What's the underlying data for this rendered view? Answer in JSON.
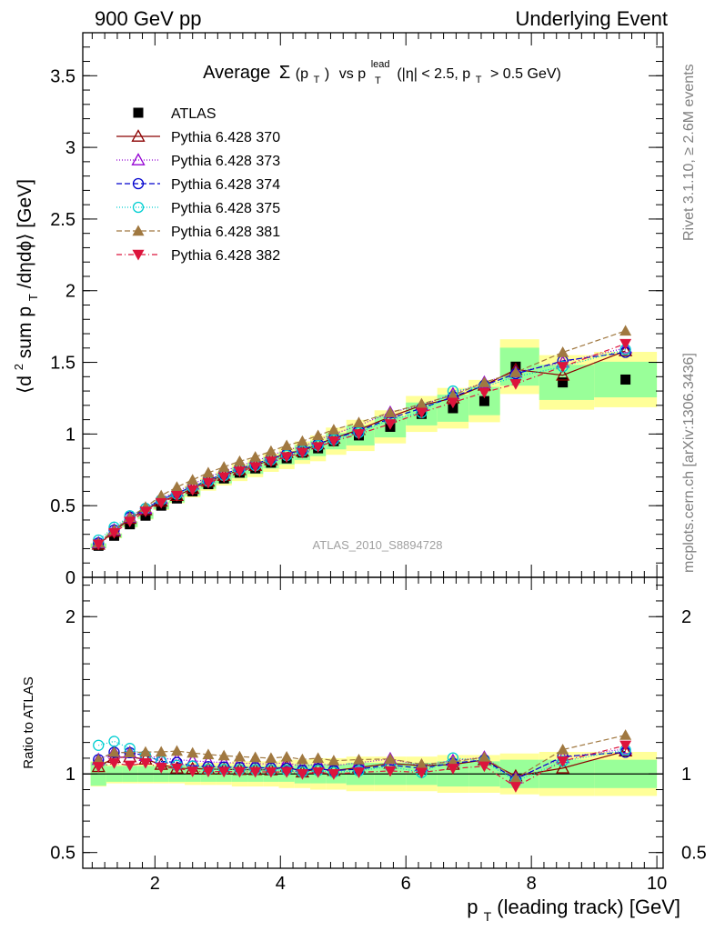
{
  "header": {
    "left": "900 GeV pp",
    "right": "Underlying Event"
  },
  "side": {
    "rivet": "Rivet 3.1.10, ≥ 2.6M events",
    "mcplots": "mcplots.cern.ch [arXiv:1306.3436]"
  },
  "watermark": "ATLAS_2010_S8894728",
  "chart_data": [
    {
      "type": "scatter",
      "title_parts": {
        "prefix": "Average",
        "sigma": "Σ",
        "sigma_arg": "(p",
        "sigma_sub": "T",
        "sigma_close": ")",
        "vs": "vs p",
        "lead_sup": "lead",
        "lead_sub": "T",
        "cut1": "(|η| < 2.5, p",
        "cut_sub": "T",
        "cut2": "> 0.5 GeV)"
      },
      "ylabel_parts": {
        "a": "⟨d",
        "sup": "2",
        "b": " sum p",
        "sub": "T",
        "c": "/dηdϕ⟩ [GeV]"
      },
      "xlim": [
        0.85,
        10.1
      ],
      "ylim": [
        0,
        3.8
      ],
      "yticks": [
        0,
        0.5,
        1,
        1.5,
        2,
        2.5,
        3,
        3.5
      ],
      "ytick_labels": [
        "0",
        "0.5",
        "1",
        "1.5",
        "2",
        "2.5",
        "3",
        "3.5"
      ],
      "x": [
        1.1,
        1.35,
        1.6,
        1.85,
        2.1,
        2.35,
        2.6,
        2.85,
        3.1,
        3.35,
        3.6,
        3.85,
        4.1,
        4.35,
        4.6,
        4.85,
        5.25,
        5.75,
        6.25,
        6.75,
        7.25,
        7.75,
        8.5,
        9.5
      ],
      "series": [
        {
          "name": "ATLAS",
          "marker": "square-filled",
          "color": "#000000",
          "line": "none",
          "values": [
            0.22,
            0.29,
            0.37,
            0.43,
            0.5,
            0.55,
            0.6,
            0.65,
            0.69,
            0.73,
            0.76,
            0.8,
            0.83,
            0.87,
            0.9,
            0.95,
            0.99,
            1.05,
            1.14,
            1.18,
            1.23,
            1.47,
            1.36,
            1.38
          ],
          "band_inner": [
            0.075,
            0.05,
            0.05,
            0.05,
            0.05,
            0.05,
            0.05,
            0.05,
            0.05,
            0.05,
            0.05,
            0.05,
            0.05,
            0.06,
            0.06,
            0.06,
            0.07,
            0.07,
            0.07,
            0.08,
            0.08,
            0.09,
            0.09,
            0.09
          ],
          "band_outer": [
            0.08,
            0.06,
            0.06,
            0.06,
            0.06,
            0.06,
            0.07,
            0.07,
            0.07,
            0.08,
            0.08,
            0.08,
            0.09,
            0.09,
            0.1,
            0.1,
            0.11,
            0.11,
            0.11,
            0.12,
            0.12,
            0.13,
            0.14,
            0.14
          ]
        },
        {
          "name": "Pythia 6.428 370",
          "marker": "triangle-up-open",
          "color": "#8b0000",
          "dash": "",
          "values": [
            0.23,
            0.32,
            0.41,
            0.47,
            0.53,
            0.57,
            0.62,
            0.67,
            0.71,
            0.75,
            0.78,
            0.82,
            0.87,
            0.88,
            0.93,
            0.97,
            1.03,
            1.12,
            1.2,
            1.25,
            1.34,
            1.45,
            1.41,
            1.58
          ]
        },
        {
          "name": "Pythia 6.428 373",
          "marker": "triangle-up-open",
          "color": "#9400d3",
          "dash": "1,2",
          "values": [
            0.24,
            0.33,
            0.42,
            0.48,
            0.55,
            0.6,
            0.65,
            0.7,
            0.74,
            0.78,
            0.81,
            0.85,
            0.89,
            0.91,
            0.96,
            1.0,
            1.06,
            1.15,
            1.2,
            1.28,
            1.36,
            1.43,
            1.5,
            1.6
          ]
        },
        {
          "name": "Pythia 6.428 374",
          "marker": "circle-open",
          "color": "#0000cd",
          "dash": "6,3",
          "values": [
            0.24,
            0.33,
            0.42,
            0.48,
            0.54,
            0.59,
            0.63,
            0.68,
            0.72,
            0.76,
            0.79,
            0.83,
            0.86,
            0.89,
            0.93,
            0.97,
            1.02,
            1.11,
            1.18,
            1.26,
            1.34,
            1.42,
            1.51,
            1.57
          ]
        },
        {
          "name": "Pythia 6.428 375",
          "marker": "circle-open",
          "color": "#00ced1",
          "dash": "1,2",
          "values": [
            0.26,
            0.35,
            0.43,
            0.48,
            0.54,
            0.58,
            0.63,
            0.67,
            0.71,
            0.75,
            0.78,
            0.82,
            0.85,
            0.88,
            0.92,
            0.96,
            1.01,
            1.1,
            1.15,
            1.3,
            1.33,
            1.4,
            1.47,
            1.59
          ]
        },
        {
          "name": "Pythia 6.428 381",
          "marker": "triangle-up-filled",
          "color": "#a07840",
          "dash": "6,3",
          "values": [
            0.24,
            0.33,
            0.42,
            0.49,
            0.57,
            0.63,
            0.68,
            0.73,
            0.77,
            0.81,
            0.84,
            0.88,
            0.92,
            0.95,
            0.99,
            1.03,
            1.08,
            1.15,
            1.21,
            1.27,
            1.36,
            1.43,
            1.57,
            1.72
          ]
        },
        {
          "name": "Pythia 6.428 382",
          "marker": "triangle-down-filled",
          "color": "#dc143c",
          "dash": "6,3,1,3",
          "values": [
            0.23,
            0.31,
            0.39,
            0.46,
            0.52,
            0.57,
            0.61,
            0.66,
            0.7,
            0.74,
            0.77,
            0.81,
            0.84,
            0.87,
            0.91,
            0.95,
            1.0,
            1.07,
            1.15,
            1.22,
            1.29,
            1.35,
            1.47,
            1.63
          ]
        }
      ]
    },
    {
      "type": "scatter",
      "ylabel": "Ratio to ATLAS",
      "ylim": [
        0.4,
        2.25
      ],
      "yticks": [
        0.5,
        1,
        2
      ],
      "ytick_labels": [
        "0.5",
        "1",
        "2"
      ],
      "xticks": [
        2,
        4,
        6,
        8,
        10
      ],
      "xtick_labels": [
        "2",
        "4",
        "6",
        "8",
        "10"
      ],
      "xlabel_parts": {
        "a": "p",
        "sub": "T",
        "b": " (leading track) [GeV]"
      }
    }
  ]
}
